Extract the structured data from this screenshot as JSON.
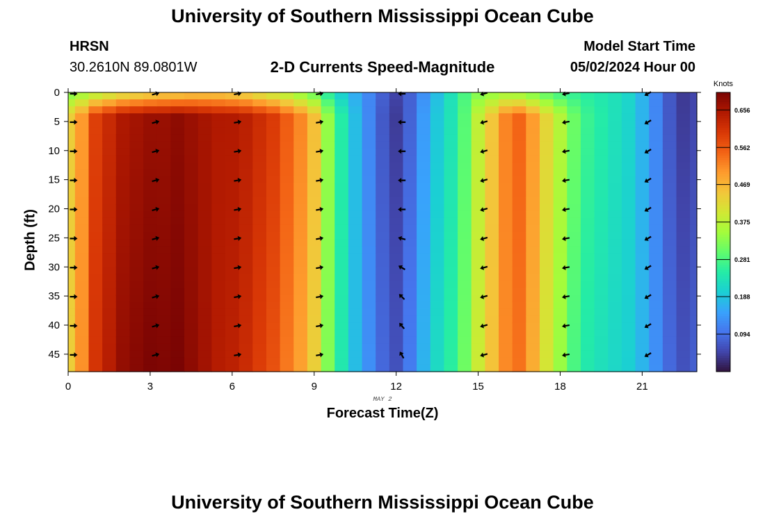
{
  "header": {
    "title": "University of Southern Mississippi Ocean Cube",
    "station": "HRSN",
    "coordinates": "30.2610N  89.0801W",
    "subtitle": "2-D Currents Speed-Magnitude",
    "model_start_label": "Model Start Time",
    "model_start_value": "05/02/2024 Hour 00",
    "footer_title": "University of Southern Mississippi Ocean Cube"
  },
  "chart_data": {
    "type": "heatmap",
    "title": "2-D Currents Speed-Magnitude",
    "xlabel": "Forecast Time(Z)",
    "ylabel": "Depth (ft)",
    "date_label": "MAY 2",
    "x_range": [
      0,
      23
    ],
    "y_range": [
      0,
      48
    ],
    "y_inverted": true,
    "x_ticks": [
      0,
      3,
      6,
      9,
      12,
      15,
      18,
      21
    ],
    "y_ticks": [
      0,
      5,
      10,
      15,
      20,
      25,
      30,
      35,
      40,
      45
    ],
    "colorbar": {
      "unit": "Knots",
      "range": [
        0,
        0.7
      ],
      "ticks": [
        "0.094",
        "0.188",
        "0.281",
        "0.375",
        "0.469",
        "0.562",
        "0.656"
      ],
      "tick_values": [
        0.094,
        0.188,
        0.281,
        0.375,
        0.469,
        0.562,
        0.656
      ],
      "colormap": [
        "#30123b",
        "#4145ab",
        "#4675ed",
        "#39a2fc",
        "#1bcfd4",
        "#24eca6",
        "#61fc6c",
        "#a4fc3b",
        "#d1e834",
        "#f3c63a",
        "#fe9b2d",
        "#f36315",
        "#d93806",
        "#b11901",
        "#7a0403"
      ]
    },
    "time_hours": [
      0,
      0.5,
      1,
      1.5,
      2,
      2.5,
      3,
      3.5,
      4,
      4.5,
      5,
      5.5,
      6,
      6.5,
      7,
      7.5,
      8,
      8.5,
      9,
      9.5,
      10,
      10.5,
      11,
      11.5,
      12,
      12.5,
      13,
      13.5,
      14,
      14.5,
      15,
      15.5,
      16,
      16.5,
      17,
      17.5,
      18,
      18.5,
      19,
      19.5,
      20,
      20.5,
      21,
      21.5,
      22,
      22.5,
      23
    ],
    "speed_knots_by_time": [
      0.44,
      0.5,
      0.59,
      0.62,
      0.65,
      0.66,
      0.67,
      0.67,
      0.68,
      0.67,
      0.66,
      0.65,
      0.65,
      0.64,
      0.62,
      0.6,
      0.56,
      0.52,
      0.46,
      0.34,
      0.25,
      0.18,
      0.12,
      0.07,
      0.04,
      0.08,
      0.14,
      0.19,
      0.23,
      0.29,
      0.38,
      0.45,
      0.52,
      0.55,
      0.5,
      0.43,
      0.37,
      0.31,
      0.27,
      0.25,
      0.23,
      0.21,
      0.17,
      0.12,
      0.07,
      0.04,
      0.05
    ],
    "surface_speed_knots": [
      0.32,
      0.34,
      0.36,
      0.38,
      0.4,
      0.41,
      0.42,
      0.43,
      0.43,
      0.44,
      0.44,
      0.44,
      0.43,
      0.42,
      0.4,
      0.38,
      0.36,
      0.33,
      0.3,
      0.25,
      0.2,
      0.16,
      0.12,
      0.08,
      0.05,
      0.08,
      0.13,
      0.18,
      0.23,
      0.28,
      0.32,
      0.33,
      0.34,
      0.33,
      0.31,
      0.29,
      0.27,
      0.26,
      0.25,
      0.24,
      0.23,
      0.21,
      0.17,
      0.12,
      0.07,
      0.04,
      0.05
    ],
    "vector_times": [
      0,
      3,
      6,
      9,
      12,
      15,
      18,
      21
    ],
    "vector_depths": [
      0,
      5,
      10,
      15,
      20,
      25,
      30,
      35,
      40,
      45
    ],
    "vector_direction_deg_by_time": [
      90,
      75,
      80,
      80,
      270,
      255,
      260,
      240
    ],
    "vector_direction_deg_hour12_by_depth": [
      270,
      270,
      270,
      270,
      270,
      285,
      300,
      315,
      320,
      330
    ]
  }
}
